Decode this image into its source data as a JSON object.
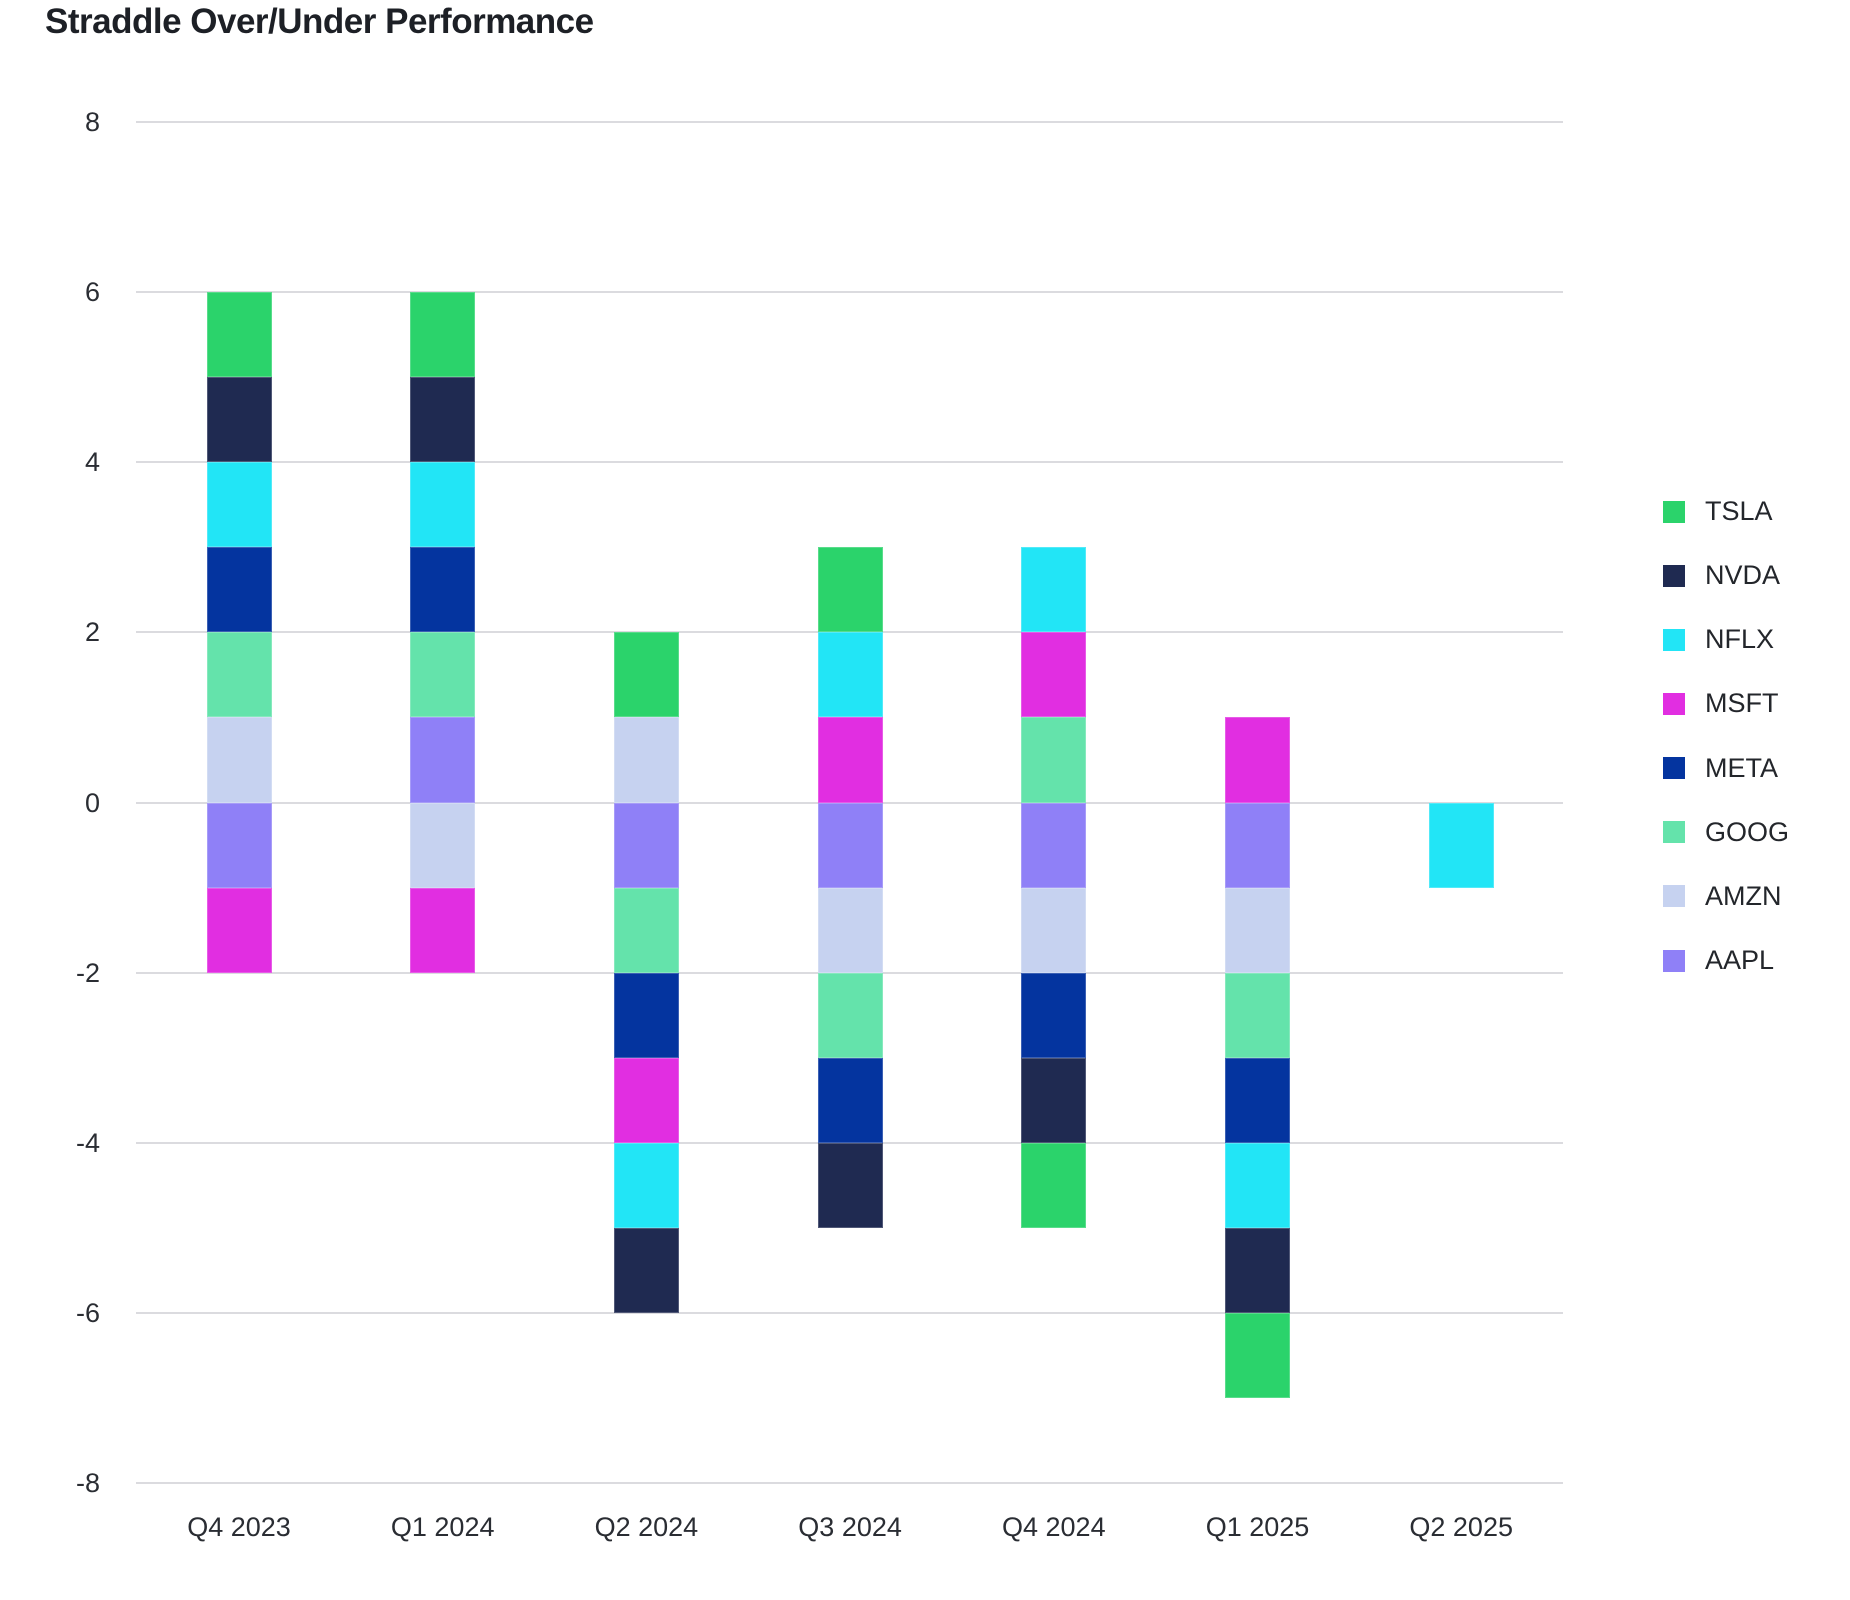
{
  "title": "Straddle Over/Under Performance",
  "chart_data": {
    "type": "bar",
    "stacked": true,
    "title": "Straddle Over/Under Performance",
    "xlabel": "",
    "ylabel": "",
    "categories": [
      "Q4 2023",
      "Q1 2024",
      "Q2 2024",
      "Q3 2024",
      "Q4 2024",
      "Q1 2025",
      "Q2 2025"
    ],
    "series": [
      {
        "name": "TSLA",
        "color": "#2bd36b",
        "values": [
          1,
          1,
          1,
          1,
          -1,
          -1,
          0
        ]
      },
      {
        "name": "NVDA",
        "color": "#1f2a51",
        "values": [
          1,
          1,
          -1,
          -1,
          -1,
          -1,
          0
        ]
      },
      {
        "name": "NFLX",
        "color": "#22e5f6",
        "values": [
          1,
          1,
          -1,
          1,
          1,
          -1,
          -1
        ]
      },
      {
        "name": "MSFT",
        "color": "#e12ee1",
        "values": [
          -1,
          -1,
          -1,
          1,
          1,
          1,
          0
        ]
      },
      {
        "name": "META",
        "color": "#04349f",
        "values": [
          1,
          1,
          -1,
          -1,
          -1,
          -1,
          0
        ]
      },
      {
        "name": "GOOG",
        "color": "#64e3ab",
        "values": [
          1,
          1,
          -1,
          -1,
          1,
          -1,
          0
        ]
      },
      {
        "name": "AMZN",
        "color": "#c6d2f0",
        "values": [
          1,
          -1,
          1,
          -1,
          -1,
          -1,
          0
        ]
      },
      {
        "name": "AAPL",
        "color": "#8f80f7",
        "values": [
          -1,
          1,
          -1,
          -1,
          -1,
          -1,
          0
        ]
      }
    ],
    "stack_order_from_zero": [
      "AAPL",
      "AMZN",
      "GOOG",
      "META",
      "MSFT",
      "NFLX",
      "NVDA",
      "TSLA"
    ],
    "ylim": [
      -8,
      8
    ],
    "yticks": [
      8,
      6,
      4,
      2,
      0,
      -2,
      -4,
      -6,
      -8
    ],
    "grid": true,
    "grid_color": "#dbdbdf",
    "axis_text_color": "#2a2d33",
    "title_color": "#1d2026",
    "legend_position": "right",
    "legend_order": [
      "TSLA",
      "NVDA",
      "NFLX",
      "MSFT",
      "META",
      "GOOG",
      "AMZN",
      "AAPL"
    ]
  }
}
